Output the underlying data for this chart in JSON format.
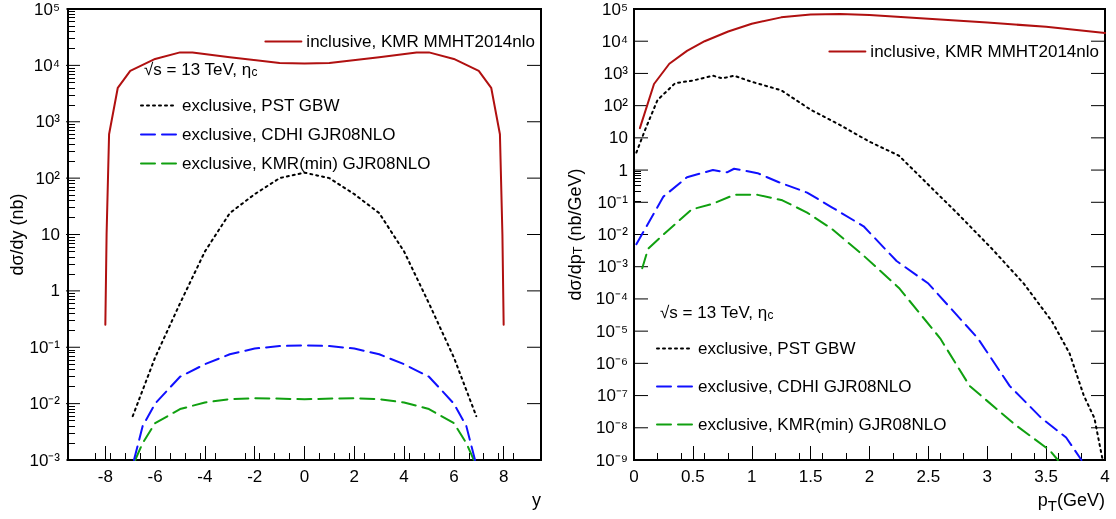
{
  "chart_data": [
    {
      "type": "line",
      "xlabel": "y",
      "ylabel": "dσ/dy (nb)",
      "log": "y",
      "legend": "top",
      "grid": false,
      "annotations": [
        "√s = 13 TeV, η$_{c}$"
      ],
      "xlim": [
        -9.5,
        9.5
      ],
      "xticks": [
        -8,
        -6,
        -4,
        -2,
        0,
        2,
        4,
        6,
        8
      ],
      "ylim": [
        0.001,
        100000
      ],
      "yticks": [
        {
          "value": 0.001,
          "label": "10⁻³"
        },
        {
          "value": 0.01,
          "label": "10⁻²"
        },
        {
          "value": 0.1,
          "label": "10⁻¹"
        },
        {
          "value": 1,
          "label": "1"
        },
        {
          "value": 10,
          "label": "10"
        },
        {
          "value": 100,
          "label": "10²"
        },
        {
          "value": 1000,
          "label": "10³"
        },
        {
          "value": 10000,
          "label": "10⁴"
        },
        {
          "value": 100000,
          "label": "10⁵"
        }
      ],
      "series": [
        {
          "name": "inclusive, KMR MMHT2014nlo",
          "color": "#b01010",
          "line_style": "solid",
          "x": [
            -8,
            -7.95,
            -7.85,
            -7.5,
            -7,
            -6,
            -5,
            -4.5,
            -3,
            -1,
            0,
            1,
            3,
            4.5,
            5,
            6,
            7,
            7.5,
            7.85,
            7.95,
            8
          ],
          "values": [
            0.25,
            10,
            600,
            4000,
            8000,
            13000,
            17000,
            17000,
            14000,
            11000,
            10800,
            11000,
            14000,
            17000,
            17000,
            13000,
            8000,
            4000,
            600,
            10,
            0.25
          ]
        },
        {
          "name": "exclusive, PST GBW",
          "color": "#000000",
          "line_style": "dotted",
          "x": [
            -6.9,
            -6,
            -5,
            -4,
            -3,
            -2,
            -1,
            0,
            1,
            2,
            3,
            4,
            5,
            6,
            6.9
          ],
          "values": [
            0.006,
            0.066,
            0.6,
            5,
            24,
            52,
            100,
            125,
            100,
            52,
            24,
            5,
            0.6,
            0.066,
            0.006
          ]
        },
        {
          "name": "exclusive, CDHI GJR08NLO",
          "color": "#1010ff",
          "line_style": "dashed",
          "x": [
            -6.85,
            -6.5,
            -6,
            -5,
            -4,
            -3,
            -2,
            -1,
            0,
            1,
            2,
            3,
            4,
            5,
            6,
            6.5,
            6.85
          ],
          "values": [
            0.001,
            0.004,
            0.01,
            0.03,
            0.05,
            0.075,
            0.095,
            0.105,
            0.108,
            0.105,
            0.095,
            0.075,
            0.05,
            0.03,
            0.01,
            0.004,
            0.001
          ]
        },
        {
          "name": "exclusive, KMR(min) GJR08NLO",
          "color": "#10a010",
          "line_style": "dashed",
          "x": [
            -6.8,
            -6.5,
            -6,
            -5,
            -4,
            -3,
            -2,
            0,
            2,
            3,
            4,
            5,
            6,
            6.5,
            6.8
          ],
          "values": [
            0.001,
            0.002,
            0.0045,
            0.008,
            0.0105,
            0.012,
            0.0125,
            0.012,
            0.0125,
            0.012,
            0.0105,
            0.008,
            0.0045,
            0.002,
            0.001
          ]
        }
      ]
    },
    {
      "type": "line",
      "xlabel": "p$_{T}$(GeV)",
      "ylabel": "dσ/dp$_{T}$ (nb/GeV)",
      "log": "y",
      "legend": "bottom left",
      "grid": false,
      "annotations": [
        "√s = 13 TeV, η$_{c}$"
      ],
      "xlim": [
        0,
        4
      ],
      "xticks": [
        0,
        0.5,
        1,
        1.5,
        2,
        2.5,
        3,
        3.5,
        4
      ],
      "ylim": [
        1e-09,
        100000
      ],
      "yticks": [
        {
          "value": 1e-09,
          "label": "10⁻⁹"
        },
        {
          "value": 1e-08,
          "label": "10⁻⁸"
        },
        {
          "value": 1e-07,
          "label": "10⁻⁷"
        },
        {
          "value": 1e-06,
          "label": "10⁻⁶"
        },
        {
          "value": 1e-05,
          "label": "10⁻⁵"
        },
        {
          "value": 0.0001,
          "label": "10⁻⁴"
        },
        {
          "value": 0.001,
          "label": "10⁻³"
        },
        {
          "value": 0.01,
          "label": "10⁻²"
        },
        {
          "value": 0.1,
          "label": "10⁻¹"
        },
        {
          "value": 1,
          "label": "1"
        },
        {
          "value": 10,
          "label": "10"
        },
        {
          "value": 100,
          "label": "10²"
        },
        {
          "value": 1000,
          "label": "10³"
        },
        {
          "value": 10000,
          "label": "10⁴"
        },
        {
          "value": 100000,
          "label": "10⁵"
        }
      ],
      "series": [
        {
          "name": "inclusive, KMR MMHT2014nlo",
          "color": "#b01010",
          "line_style": "solid",
          "x": [
            0.05,
            0.17,
            0.3,
            0.45,
            0.6,
            0.8,
            1,
            1.25,
            1.5,
            1.75,
            2,
            2.5,
            3,
            3.5,
            4
          ],
          "values": [
            20,
            470,
            2000,
            5000,
            10000,
            20000,
            35000,
            55000,
            68000,
            70000,
            65000,
            50000,
            38000,
            28000,
            18000
          ]
        },
        {
          "name": "exclusive, PST GBW",
          "color": "#000000",
          "line_style": "dotted",
          "x": [
            0.02,
            0.1,
            0.2,
            0.35,
            0.5,
            0.67,
            0.75,
            0.85,
            1,
            1.25,
            1.5,
            1.75,
            2,
            2.25,
            2.5,
            2.75,
            3.04,
            3.31,
            3.55,
            3.7,
            3.82,
            3.91,
            3.98
          ],
          "values": [
            3.5,
            20,
            150,
            500,
            600,
            850,
            700,
            850,
            550,
            300,
            75,
            25,
            7.6,
            2.8,
            0.35,
            0.044,
            0.0036,
            0.0003,
            2e-05,
            2e-06,
            1e-07,
            2e-08,
            1e-09
          ]
        },
        {
          "name": "exclusive, CDHI GJR08NLO",
          "color": "#1010ff",
          "line_style": "dashed",
          "x": [
            0.02,
            0.25,
            0.45,
            0.67,
            0.79,
            0.85,
            1.05,
            1.23,
            1.47,
            1.68,
            1.95,
            2.23,
            2.5,
            2.92,
            3.19,
            3.46,
            3.67,
            3.8
          ],
          "values": [
            0.005,
            0.15,
            0.6,
            1,
            0.85,
            1.1,
            0.8,
            0.42,
            0.2,
            0.07,
            0.018,
            0.0015,
            0.0003,
            6e-06,
            2e-07,
            2e-08,
            5e-09,
            1e-09
          ]
        },
        {
          "name": "exclusive, KMR(min) GJR08NLO",
          "color": "#10a010",
          "line_style": "dashed",
          "x": [
            0.07,
            0.12,
            0.25,
            0.49,
            0.67,
            0.85,
            1.05,
            1.26,
            1.47,
            1.68,
            1.95,
            2.25,
            2.6,
            2.85,
            3.23,
            3.53,
            3.6
          ],
          "values": [
            0.0009,
            0.0036,
            0.01,
            0.06,
            0.09,
            0.17,
            0.17,
            0.115,
            0.048,
            0.015,
            0.0022,
            0.00022,
            6e-06,
            2e-07,
            1.3e-08,
            2e-09,
            1e-09
          ]
        }
      ]
    }
  ]
}
